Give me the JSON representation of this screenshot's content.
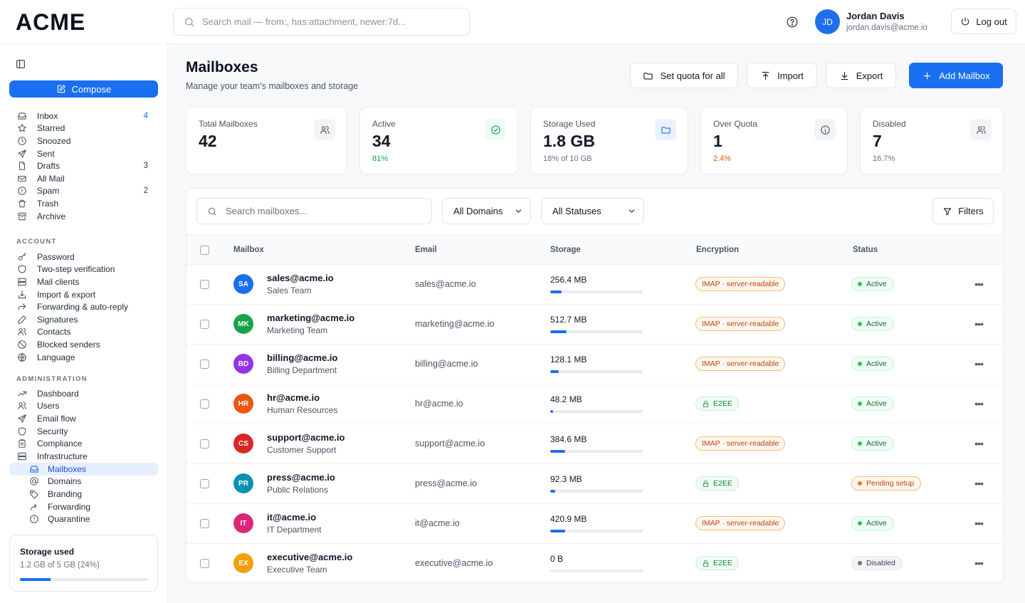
{
  "app": {
    "logo": "ACME"
  },
  "header": {
    "search_placeholder": "Search mail — from:, has:attachment, newer:7d...",
    "user": {
      "initials": "JD",
      "name": "Jordan Davis",
      "email": "jordan.davis@acme.io"
    },
    "logout_label": "Log out"
  },
  "sidebar": {
    "compose_label": "Compose",
    "mail": [
      {
        "label": "Inbox",
        "count": "4",
        "icon": "inbox-icon"
      },
      {
        "label": "Starred",
        "count": "",
        "icon": "star-icon"
      },
      {
        "label": "Snoozed",
        "count": "",
        "icon": "clock-icon"
      },
      {
        "label": "Sent",
        "count": "",
        "icon": "send-icon"
      },
      {
        "label": "Drafts",
        "count": "3",
        "icon": "file-icon"
      },
      {
        "label": "All Mail",
        "count": "",
        "icon": "mail-stack-icon"
      },
      {
        "label": "Spam",
        "count": "2",
        "icon": "alert-icon"
      },
      {
        "label": "Trash",
        "count": "",
        "icon": "trash-icon"
      },
      {
        "label": "Archive",
        "count": "",
        "icon": "archive-icon"
      }
    ],
    "account_title": "ACCOUNT",
    "account": [
      {
        "label": "Password",
        "icon": "key-icon"
      },
      {
        "label": "Two-step verification",
        "icon": "shield-icon"
      },
      {
        "label": "Mail clients",
        "icon": "server-icon"
      },
      {
        "label": "Import & export",
        "icon": "import-icon"
      },
      {
        "label": "Forwarding & auto-reply",
        "icon": "forward-icon"
      },
      {
        "label": "Signatures",
        "icon": "pen-icon"
      },
      {
        "label": "Contacts",
        "icon": "contacts-icon"
      },
      {
        "label": "Blocked senders",
        "icon": "block-icon"
      },
      {
        "label": "Language",
        "icon": "globe-icon"
      }
    ],
    "admin_title": "ADMINISTRATION",
    "admin": [
      {
        "label": "Dashboard",
        "icon": "trend-icon"
      },
      {
        "label": "Users",
        "icon": "users-icon"
      },
      {
        "label": "Email flow",
        "icon": "send-icon"
      },
      {
        "label": "Security",
        "icon": "shield-icon"
      },
      {
        "label": "Compliance",
        "icon": "clipboard-icon"
      },
      {
        "label": "Infrastructure",
        "icon": "server-icon"
      }
    ],
    "infra_sub": [
      {
        "label": "Mailboxes",
        "icon": "inbox-icon",
        "active": true
      },
      {
        "label": "Domains",
        "icon": "at-icon"
      },
      {
        "label": "Branding",
        "icon": "tag-icon"
      },
      {
        "label": "Forwarding",
        "icon": "forward-arrow-icon"
      },
      {
        "label": "Quarantine",
        "icon": "quarantine-icon"
      }
    ],
    "storage": {
      "title": "Storage used",
      "text": "1.2 GB of 5 GB (24%)",
      "percent": 24
    }
  },
  "page": {
    "title": "Mailboxes",
    "subtitle": "Manage your team's mailboxes and storage",
    "actions": {
      "quota": "Set quota for all",
      "import": "Import",
      "export": "Export",
      "add": "Add Mailbox"
    }
  },
  "stats": [
    {
      "label": "Total Mailboxes",
      "value": "42",
      "sub": "",
      "icon": "users-icon",
      "tone": "gray"
    },
    {
      "label": "Active",
      "value": "34",
      "sub": "81%",
      "icon": "check-circle-icon",
      "tone": "green"
    },
    {
      "label": "Storage Used",
      "value": "1.8 GB",
      "sub": "18% of 10 GB",
      "icon": "folder-icon",
      "tone": "blue"
    },
    {
      "label": "Over Quota",
      "value": "1",
      "sub": "2.4%",
      "icon": "info-icon",
      "tone": "red"
    },
    {
      "label": "Disabled",
      "value": "7",
      "sub": "16.7%",
      "icon": "users-icon",
      "tone": "gray"
    }
  ],
  "filters": {
    "search_placeholder": "Search mailboxes...",
    "domain": "All Domains",
    "status": "All Statuses",
    "filters_label": "Filters"
  },
  "table": {
    "headers": {
      "mailbox": "Mailbox",
      "email": "Email",
      "storage": "Storage",
      "encryption": "Encryption",
      "status": "Status"
    },
    "rows": [
      {
        "initials": "SA",
        "color": "#1a6ff0",
        "name": "sales@acme.io",
        "team": "Sales Team",
        "email": "sales@acme.io",
        "storage": "256.4 MB",
        "usage": 0.12,
        "encryption": "IMAP · server-readable",
        "enc_type": "imap",
        "status": "Active",
        "status_type": "active"
      },
      {
        "initials": "MK",
        "color": "#16a34a",
        "name": "marketing@acme.io",
        "team": "Marketing Team",
        "email": "marketing@acme.io",
        "storage": "512.7 MB",
        "usage": 0.18,
        "encryption": "IMAP · server-readable",
        "enc_type": "imap",
        "status": "Active",
        "status_type": "active"
      },
      {
        "initials": "BD",
        "color": "#9333ea",
        "name": "billing@acme.io",
        "team": "Billing Department",
        "email": "billing@acme.io",
        "storage": "128.1 MB",
        "usage": 0.09,
        "encryption": "IMAP · server-readable",
        "enc_type": "imap",
        "status": "Active",
        "status_type": "active"
      },
      {
        "initials": "HR",
        "color": "#ea580c",
        "name": "hr@acme.io",
        "team": "Human Resources",
        "email": "hr@acme.io",
        "storage": "48.2 MB",
        "usage": 0.03,
        "encryption": "E2EE",
        "enc_type": "e2ee",
        "status": "Active",
        "status_type": "active"
      },
      {
        "initials": "CS",
        "color": "#dc2626",
        "name": "support@acme.io",
        "team": "Customer Support",
        "email": "support@acme.io",
        "storage": "384.6 MB",
        "usage": 0.16,
        "encryption": "IMAP · server-readable",
        "enc_type": "imap",
        "status": "Active",
        "status_type": "active"
      },
      {
        "initials": "PR",
        "color": "#0891b2",
        "name": "press@acme.io",
        "team": "Public Relations",
        "email": "press@acme.io",
        "storage": "92.3 MB",
        "usage": 0.05,
        "encryption": "E2EE",
        "enc_type": "e2ee",
        "status": "Pending setup",
        "status_type": "pending"
      },
      {
        "initials": "IT",
        "color": "#db2777",
        "name": "it@acme.io",
        "team": "IT Department",
        "email": "it@acme.io",
        "storage": "420.9 MB",
        "usage": 0.16,
        "encryption": "IMAP · server-readable",
        "enc_type": "imap",
        "status": "Active",
        "status_type": "active"
      },
      {
        "initials": "EX",
        "color": "#f59e0b",
        "name": "executive@acme.io",
        "team": "Executive Team",
        "email": "executive@acme.io",
        "storage": "0 B",
        "usage": 0,
        "encryption": "E2EE",
        "enc_type": "e2ee",
        "status": "Disabled",
        "status_type": "disabled"
      }
    ]
  }
}
